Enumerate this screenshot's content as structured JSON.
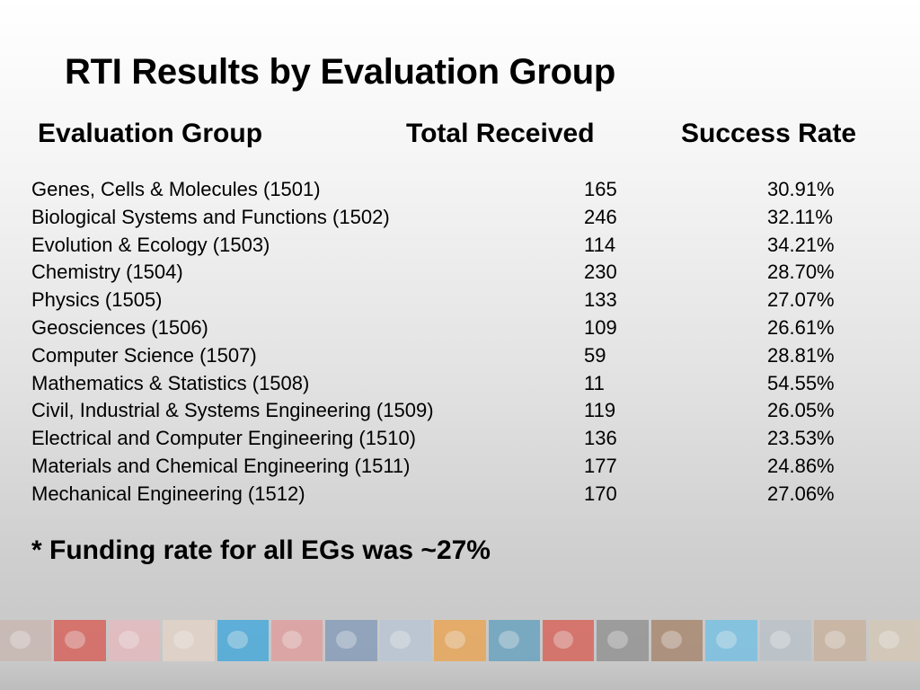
{
  "slide": {
    "title": "RTI Results by Evaluation Group",
    "headers": {
      "group": "Evaluation Group",
      "total": "Total Received",
      "rate": "Success Rate"
    },
    "rows": [
      {
        "name": "Genes, Cells & Molecules (1501)",
        "total": "165",
        "rate": "30.91%"
      },
      {
        "name": "Biological Systems and Functions (1502)",
        "total": "246",
        "rate": "32.11%"
      },
      {
        "name": "Evolution & Ecology (1503)",
        "total": "114",
        "rate": "34.21%"
      },
      {
        "name": "Chemistry (1504)",
        "total": "230",
        "rate": "28.70%"
      },
      {
        "name": "Physics (1505)",
        "total": "133",
        "rate": "27.07%"
      },
      {
        "name": "Geosciences (1506)",
        "total": "109",
        "rate": "26.61%"
      },
      {
        "name": "Computer Science (1507)",
        "total": "59",
        "rate": "28.81%"
      },
      {
        "name": "Mathematics & Statistics (1508)",
        "total": "11",
        "rate": "54.55%"
      },
      {
        "name": "Civil, Industrial & Systems Engineering (1509)",
        "total": "119",
        "rate": "26.05%"
      },
      {
        "name": "Electrical and Computer Engineering (1510)",
        "total": "136",
        "rate": "23.53%"
      },
      {
        "name": "Materials and Chemical Engineering (1511)",
        "total": "177",
        "rate": "24.86%"
      },
      {
        "name": "Mechanical Engineering (1512)",
        "total": "170",
        "rate": "27.06%"
      }
    ],
    "note": "* Funding rate for all EGs was ~27%"
  },
  "image_strip": {
    "tiles": [
      {
        "icon": "logo-fragment",
        "color": "#c9b6b0"
      },
      {
        "icon": "red-block",
        "color": "#d9574f"
      },
      {
        "icon": "pink-figure",
        "color": "#e8b9bd"
      },
      {
        "icon": "pale-figure",
        "color": "#e6d5c8"
      },
      {
        "icon": "blue-block",
        "color": "#3aa6dd"
      },
      {
        "icon": "red-ribbon",
        "color": "#e39a9a"
      },
      {
        "icon": "blue-molecule",
        "color": "#7f98b8"
      },
      {
        "icon": "network-diagram",
        "color": "#b7c6d6"
      },
      {
        "icon": "orange-block",
        "color": "#eda24a"
      },
      {
        "icon": "blue-spheres",
        "color": "#5f9fbf"
      },
      {
        "icon": "red-block",
        "color": "#d95a4f"
      },
      {
        "icon": "gray-text-image",
        "color": "#8d8d8d"
      },
      {
        "icon": "brown-texture",
        "color": "#a48066"
      },
      {
        "icon": "light-blue-block",
        "color": "#6fc0e6"
      },
      {
        "icon": "gray-panel",
        "color": "#b9c2c9"
      },
      {
        "icon": "eye-image",
        "color": "#c9b09a"
      },
      {
        "icon": "beige-texture",
        "color": "#d6c8b4"
      }
    ]
  }
}
